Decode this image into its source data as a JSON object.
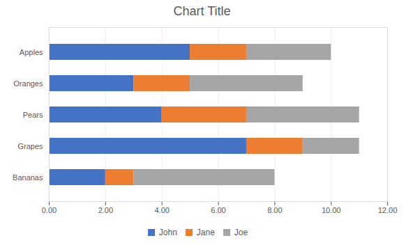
{
  "chart_data": {
    "type": "bar",
    "orientation": "horizontal",
    "stacked": true,
    "title": "Chart Title",
    "categories": [
      "Apples",
      "Oranges",
      "Pears",
      "Grapes",
      "Bananas"
    ],
    "series": [
      {
        "name": "John",
        "color": "#4472C4",
        "values": [
          5,
          3,
          4,
          7,
          2
        ]
      },
      {
        "name": "Jane",
        "color": "#ED7D31",
        "values": [
          2,
          2,
          3,
          2,
          1
        ]
      },
      {
        "name": "Joe",
        "color": "#A5A5A5",
        "values": [
          3,
          4,
          4,
          2,
          5
        ]
      }
    ],
    "xlim": [
      0,
      12
    ],
    "xticks": [
      {
        "value": 0,
        "label": "0.00"
      },
      {
        "value": 2,
        "label": "2.00"
      },
      {
        "value": 4,
        "label": "4.00"
      },
      {
        "value": 6,
        "label": "6.00"
      },
      {
        "value": 8,
        "label": "8.00"
      },
      {
        "value": 10,
        "label": "10.00"
      },
      {
        "value": 12,
        "label": "12.00"
      }
    ],
    "grid": true,
    "legend": "bottom"
  }
}
